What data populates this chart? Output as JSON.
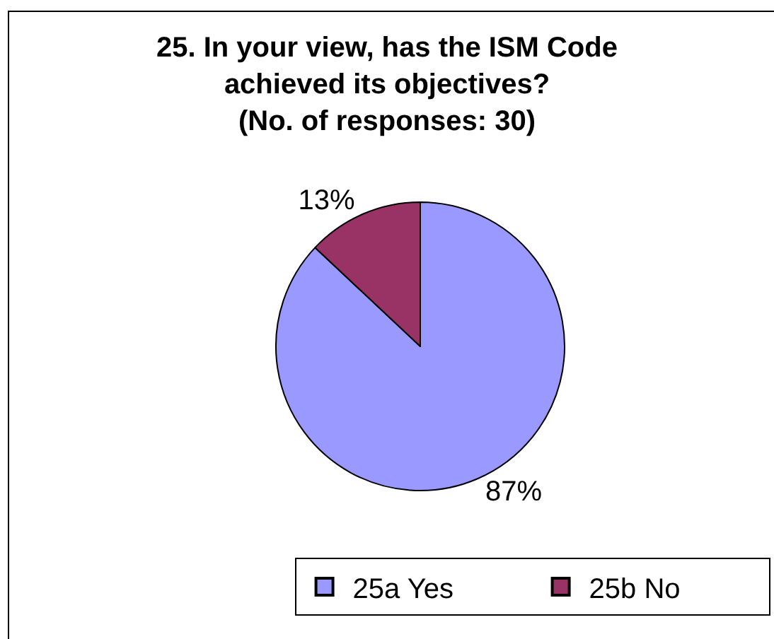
{
  "chart_data": {
    "type": "pie",
    "title": "25. In your view, has the ISM Code\nachieved its objectives?\n(No. of responses: 30)",
    "categories": [
      "25a Yes",
      "25b No"
    ],
    "values": [
      87,
      13
    ],
    "value_labels": [
      "87%",
      "13%"
    ],
    "colors": [
      "#9999ff",
      "#993366"
    ],
    "legend": "bottom right"
  }
}
